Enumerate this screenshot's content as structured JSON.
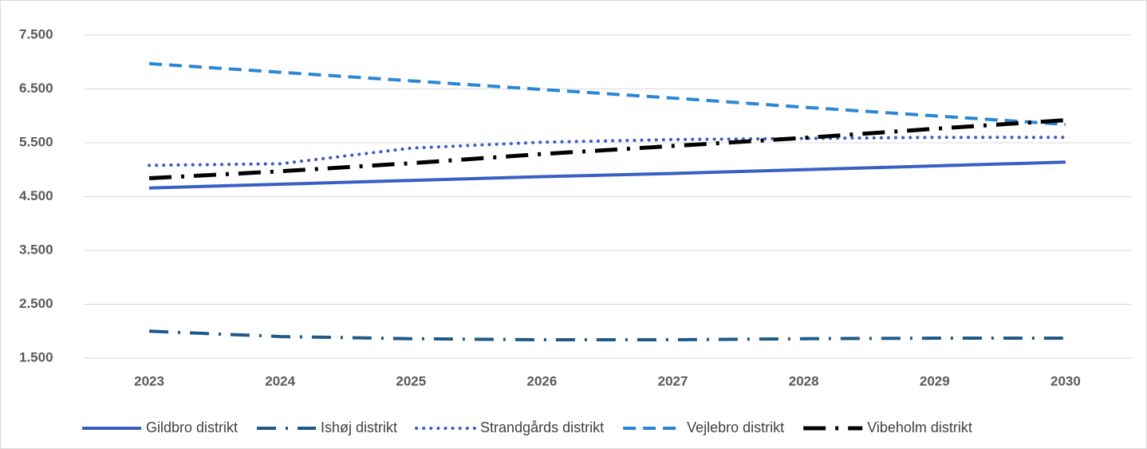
{
  "chart_data": {
    "type": "line",
    "categories": [
      "2023",
      "2024",
      "2025",
      "2026",
      "2027",
      "2028",
      "2029",
      "2030"
    ],
    "series": [
      {
        "name": "Gildbro distrikt",
        "color": "#3a5fc4",
        "style": "solid",
        "values": [
          4660,
          4730,
          4800,
          4870,
          4930,
          5000,
          5070,
          5140
        ]
      },
      {
        "name": "Ishøj distrikt",
        "color": "#1f5a87",
        "style": "dash-dot",
        "values": [
          2000,
          1900,
          1860,
          1840,
          1840,
          1860,
          1870,
          1870
        ]
      },
      {
        "name": "Strandgårds distrikt",
        "color": "#3a5cc4",
        "style": "dot",
        "values": [
          5080,
          5110,
          5400,
          5510,
          5560,
          5580,
          5600,
          5600
        ]
      },
      {
        "name": "Vejlebro distrikt",
        "color": "#2c86d6",
        "style": "dash",
        "values": [
          6970,
          6810,
          6650,
          6490,
          6330,
          6160,
          6000,
          5840
        ]
      },
      {
        "name": "Vibeholm distrikt",
        "color": "#000000",
        "style": "long-dash-dot",
        "values": [
          4840,
          4970,
          5120,
          5290,
          5440,
          5590,
          5760,
          5920
        ]
      }
    ],
    "ylim": [
      1500,
      7500
    ],
    "yticks": [
      {
        "value": 1500,
        "label": "1.500"
      },
      {
        "value": 2500,
        "label": "2.500"
      },
      {
        "value": 3500,
        "label": "3.500"
      },
      {
        "value": 4500,
        "label": "4.500"
      },
      {
        "value": 5500,
        "label": "5.500"
      },
      {
        "value": 6500,
        "label": "6.500"
      },
      {
        "value": 7500,
        "label": "7.500"
      }
    ],
    "grid": true,
    "legend": "bottom"
  }
}
